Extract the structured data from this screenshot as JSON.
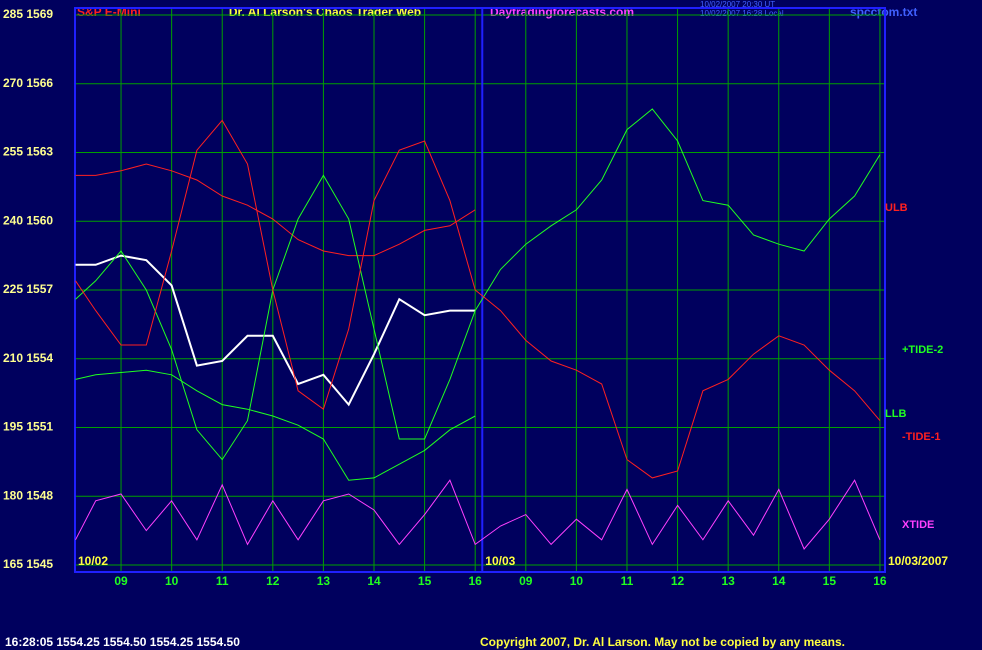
{
  "chart_data": {
    "type": "line",
    "instrument": "S&P E-Mini",
    "title": "Dr. Al Larson's Chaos Trader Web",
    "website": "Daytradingforecasts.com",
    "timestamps": [
      "10/02/2007 20:30 UT",
      "10/02/2007 16:28 Local"
    ],
    "file": "spcctom.txt",
    "date_labels": [
      "10/02",
      "10/03",
      "10/03/2007"
    ],
    "status": "16:28:05  1554.25 1554.50 1554.25 1554.50",
    "copyright": "Copyright 2007, Dr. Al Larson. May not be copied by any means.",
    "xlim": [
      8.09,
      24.1
    ],
    "xticks": [
      {
        "value": 9,
        "label": "09"
      },
      10,
      11,
      12,
      13,
      14,
      15,
      16,
      {
        "value": 17,
        "label": "09"
      },
      {
        "value": 18,
        "label": "10"
      },
      {
        "value": 19,
        "label": "11"
      },
      {
        "value": 20,
        "label": "12"
      },
      {
        "value": 21,
        "label": "13"
      },
      {
        "value": 22,
        "label": "14"
      },
      {
        "value": 23,
        "label": "15"
      },
      {
        "value": 24,
        "label": "16"
      }
    ],
    "day_break": 16.14,
    "ylim": [
      1545,
      1569
    ],
    "yticks": [
      {
        "value": 1569,
        "label": "285 1569"
      },
      {
        "value": 1566,
        "label": "270 1566"
      },
      {
        "value": 1563,
        "label": "255 1563"
      },
      {
        "value": 1560,
        "label": "240 1560"
      },
      {
        "value": 1557,
        "label": "225 1557"
      },
      {
        "value": 1554,
        "label": "210 1554"
      },
      {
        "value": 1551,
        "label": "195 1551"
      },
      {
        "value": 1548,
        "label": "180 1548"
      },
      {
        "value": 1545,
        "label": "165 1545"
      }
    ],
    "grid": true,
    "x": [
      8.1,
      8.5,
      9,
      9.5,
      10,
      10.5,
      11,
      11.5,
      12,
      12.5,
      13,
      13.5,
      14,
      14.5,
      15,
      15.5,
      16,
      16.5,
      17,
      17.5,
      18,
      18.5,
      19,
      19.5,
      20,
      20.5,
      21,
      21.5,
      22,
      22.5,
      23,
      23.5,
      24
    ],
    "series": [
      {
        "color": "#ffffff",
        "values": [
          1558.1,
          1558.1,
          1558.5,
          1558.3,
          1557.2,
          1553.7,
          1553.9,
          1555.0,
          1555.0,
          1552.9,
          1553.3,
          1552.0,
          1554.2,
          1556.6,
          1555.9,
          1556.1,
          1556.1,
          null,
          null,
          null,
          null,
          null,
          null,
          null,
          null,
          null,
          null,
          null,
          null,
          null,
          null,
          null,
          null
        ]
      },
      {
        "name": "ULB",
        "color": "#ff2020",
        "values": [
          1562.0,
          1562.0,
          1562.2,
          1562.5,
          1562.2,
          1561.8,
          1561.1,
          1560.7,
          1560.1,
          1559.2,
          1558.7,
          1558.5,
          1558.5,
          1559.0,
          1559.6,
          1559.8,
          1560.5,
          null,
          null,
          null,
          null,
          null,
          null,
          null,
          null,
          null,
          null,
          null,
          null,
          null,
          null,
          null,
          null
        ]
      },
      {
        "name": "+TIDE-2",
        "color": "#20ff20",
        "values": [
          1556.6,
          1557.4,
          1558.7,
          1557.0,
          1554.4,
          1550.9,
          1549.6,
          1551.3,
          1557.0,
          1560.1,
          1562.0,
          1560.1,
          1555.3,
          1550.5,
          1550.5,
          1553.1,
          1556.1,
          1557.9,
          1559.0,
          1559.8,
          1560.5,
          1561.8,
          1564.0,
          1564.9,
          1563.5,
          1560.9,
          1560.7,
          1559.4,
          1559.0,
          1558.7,
          1560.1,
          1561.1,
          1562.9
        ]
      },
      {
        "name": "LLB",
        "color": "#20ff20",
        "values": [
          1553.1,
          1553.3,
          1553.4,
          1553.5,
          1553.3,
          1552.6,
          1552.0,
          1551.8,
          1551.5,
          1551.1,
          1550.5,
          1548.7,
          1548.8,
          1549.4,
          1550.0,
          1550.9,
          1551.5,
          null,
          null,
          null,
          null,
          null,
          null,
          null,
          null,
          null,
          null,
          null,
          null,
          null,
          null,
          null,
          null
        ]
      },
      {
        "name": "-TIDE-1",
        "color": "#ff2020",
        "values": [
          1557.4,
          1556.1,
          1554.6,
          1554.6,
          1558.7,
          1563.1,
          1564.4,
          1562.5,
          1557.0,
          1552.6,
          1551.8,
          1555.3,
          1560.9,
          1563.1,
          1563.5,
          1560.9,
          1557.0,
          1556.1,
          1554.8,
          1553.9,
          1553.5,
          1552.9,
          1549.6,
          1548.8,
          1549.1,
          1552.6,
          1553.1,
          1554.2,
          1555.0,
          1554.6,
          1553.5,
          1552.6,
          1551.3
        ]
      },
      {
        "name": "XTIDE",
        "color": "#ff40ff",
        "values": [
          1546.1,
          1547.8,
          1548.1,
          1546.5,
          1547.8,
          1546.1,
          1548.5,
          1545.9,
          1547.8,
          1546.1,
          1547.8,
          1548.1,
          1547.4,
          1545.9,
          1547.2,
          1548.7,
          1545.9,
          1546.7,
          1547.2,
          1545.9,
          1547.0,
          1546.1,
          1548.3,
          1545.9,
          1547.6,
          1546.1,
          1547.8,
          1546.3,
          1548.3,
          1545.7,
          1547.0,
          1548.7,
          1546.1
        ]
      }
    ]
  }
}
